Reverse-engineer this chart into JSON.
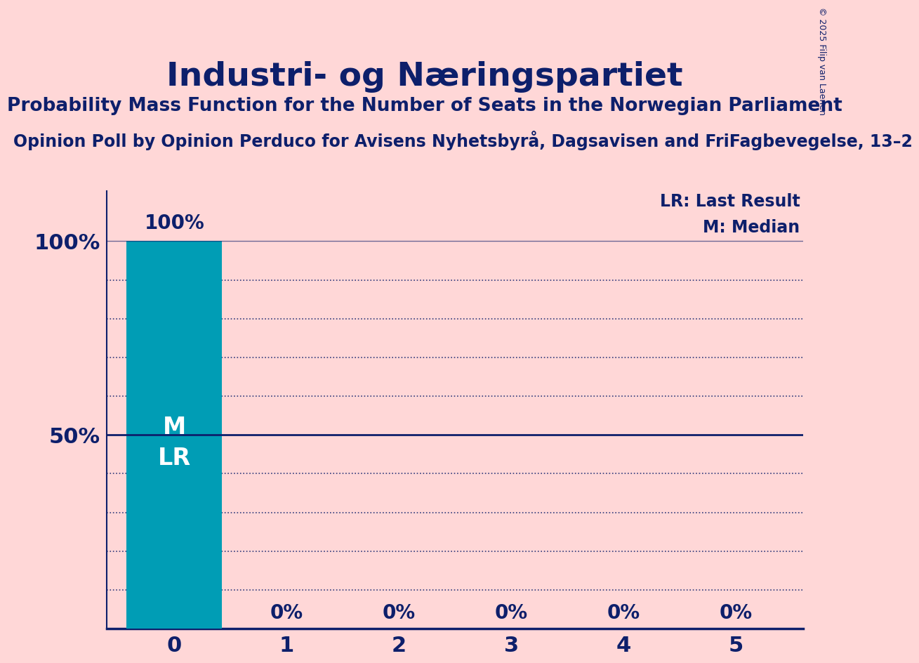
{
  "title": "Industri- og Næringspartiet",
  "subtitle": "Probability Mass Function for the Number of Seats in the Norwegian Parliament",
  "source_line": "Opinion Poll by Opinion Perduco for Avisens Nyhetsbyrå, Dagsavisen and FriFagbevegelse, 13–2",
  "copyright": "© 2025 Filip van Laenen",
  "seats": [
    0,
    1,
    2,
    3,
    4,
    5
  ],
  "probabilities": [
    1.0,
    0.0,
    0.0,
    0.0,
    0.0,
    0.0
  ],
  "bar_color": "#009db5",
  "bar_labels": [
    "100%",
    "0%",
    "0%",
    "0%",
    "0%",
    "0%"
  ],
  "median": 0,
  "last_result": 0,
  "background_color": "#ffd7d7",
  "text_color": "#0d1f6b",
  "yticks": [
    0.0,
    0.1,
    0.2,
    0.3,
    0.4,
    0.5,
    0.6,
    0.7,
    0.8,
    0.9,
    1.0
  ],
  "ylim": [
    0,
    1.0
  ],
  "title_fontsize": 34,
  "subtitle_fontsize": 19,
  "source_fontsize": 17,
  "legend_fontsize": 17,
  "bar_label_fontsize": 20,
  "axis_tick_fontsize": 22,
  "lr_line_color": "#0d1f6b",
  "grid_color": "#0d1f6b",
  "axis_color": "#0d1f6b",
  "bar_width": 0.85,
  "m_lr_fontsize": 24
}
